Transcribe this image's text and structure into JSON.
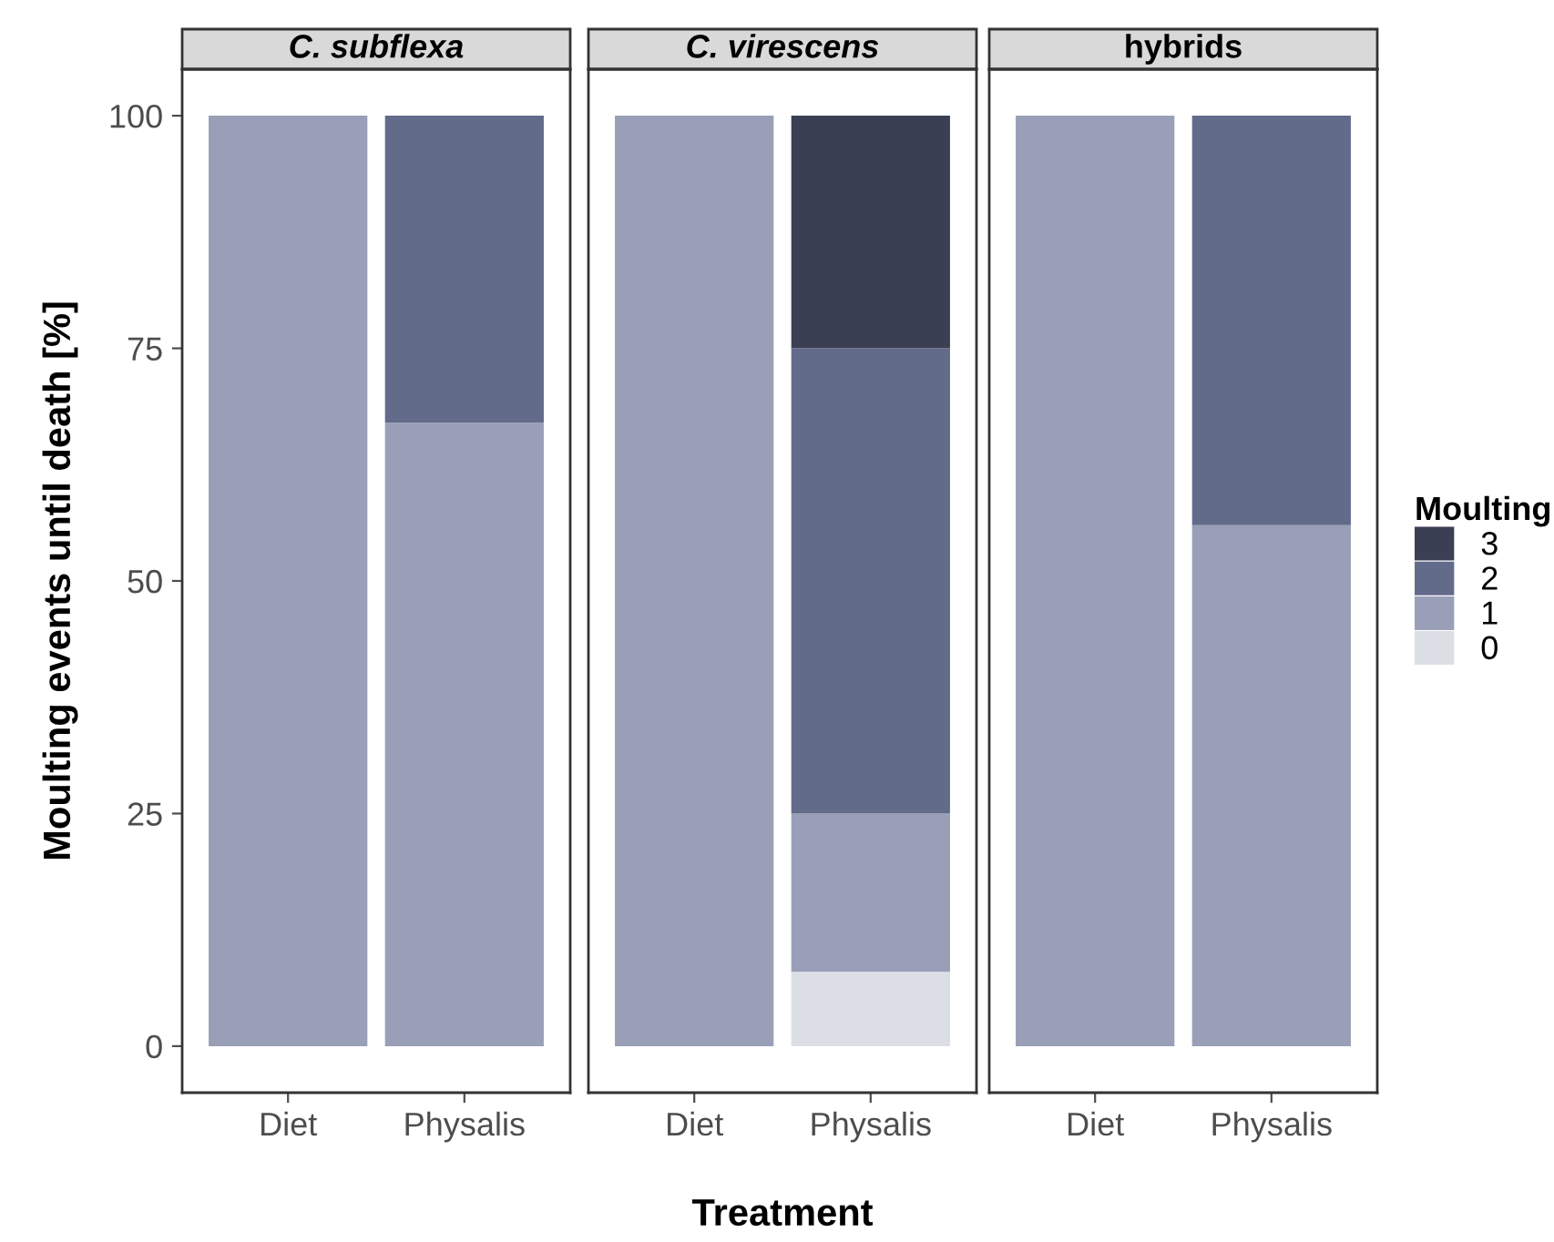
{
  "chart_data": [
    {
      "type": "bar",
      "title": "C. subflexa",
      "ylabel": "Moulting events until death [%]",
      "categories": [
        "Diet",
        "Physalis"
      ],
      "stacked": true,
      "ylim": [
        -5,
        105
      ],
      "yticks": [
        0,
        25,
        50,
        75,
        100
      ],
      "grid": false,
      "series": [
        {
          "color": "#9a9fb8",
          "values": [
            100,
            67
          ]
        },
        {
          "color": "#636b8b",
          "values": [
            null,
            33
          ]
        }
      ]
    },
    {
      "type": "bar",
      "title": "C. virescens",
      "xlabel": "Treatment",
      "categories": [
        "Diet",
        "Physalis"
      ],
      "stacked": true,
      "ylim": [
        -5,
        105
      ],
      "yticks": [
        0,
        25,
        50,
        75,
        100
      ],
      "tick_labels": "x",
      "grid": false,
      "series": [
        {
          "color": "#dcdee6",
          "values": [
            null,
            8
          ]
        },
        {
          "color": "#9a9fb8",
          "values": [
            100,
            17
          ]
        },
        {
          "color": "#636b8b",
          "values": [
            null,
            50
          ]
        },
        {
          "color": "#3b3f54",
          "values": [
            null,
            25
          ]
        }
      ]
    },
    {
      "type": "bar",
      "title": "hybrids",
      "legend_title": "Moulting",
      "categories": [
        "Diet",
        "Physalis"
      ],
      "stacked": true,
      "ylim": [
        -5,
        105
      ],
      "yticks": [
        0,
        25,
        50,
        75,
        100
      ],
      "tick_labels": "x",
      "grid": false,
      "legend": "right",
      "series": [
        {
          "name": "0",
          "color": "#dcdee6",
          "values": [
            null,
            null
          ]
        },
        {
          "name": "1",
          "color": "#9a9fb8",
          "values": [
            100,
            56
          ]
        },
        {
          "name": "2",
          "color": "#636b8b",
          "values": [
            null,
            44
          ]
        },
        {
          "name": "3",
          "color": "#3b3f54",
          "values": [
            null,
            null
          ]
        }
      ]
    }
  ]
}
